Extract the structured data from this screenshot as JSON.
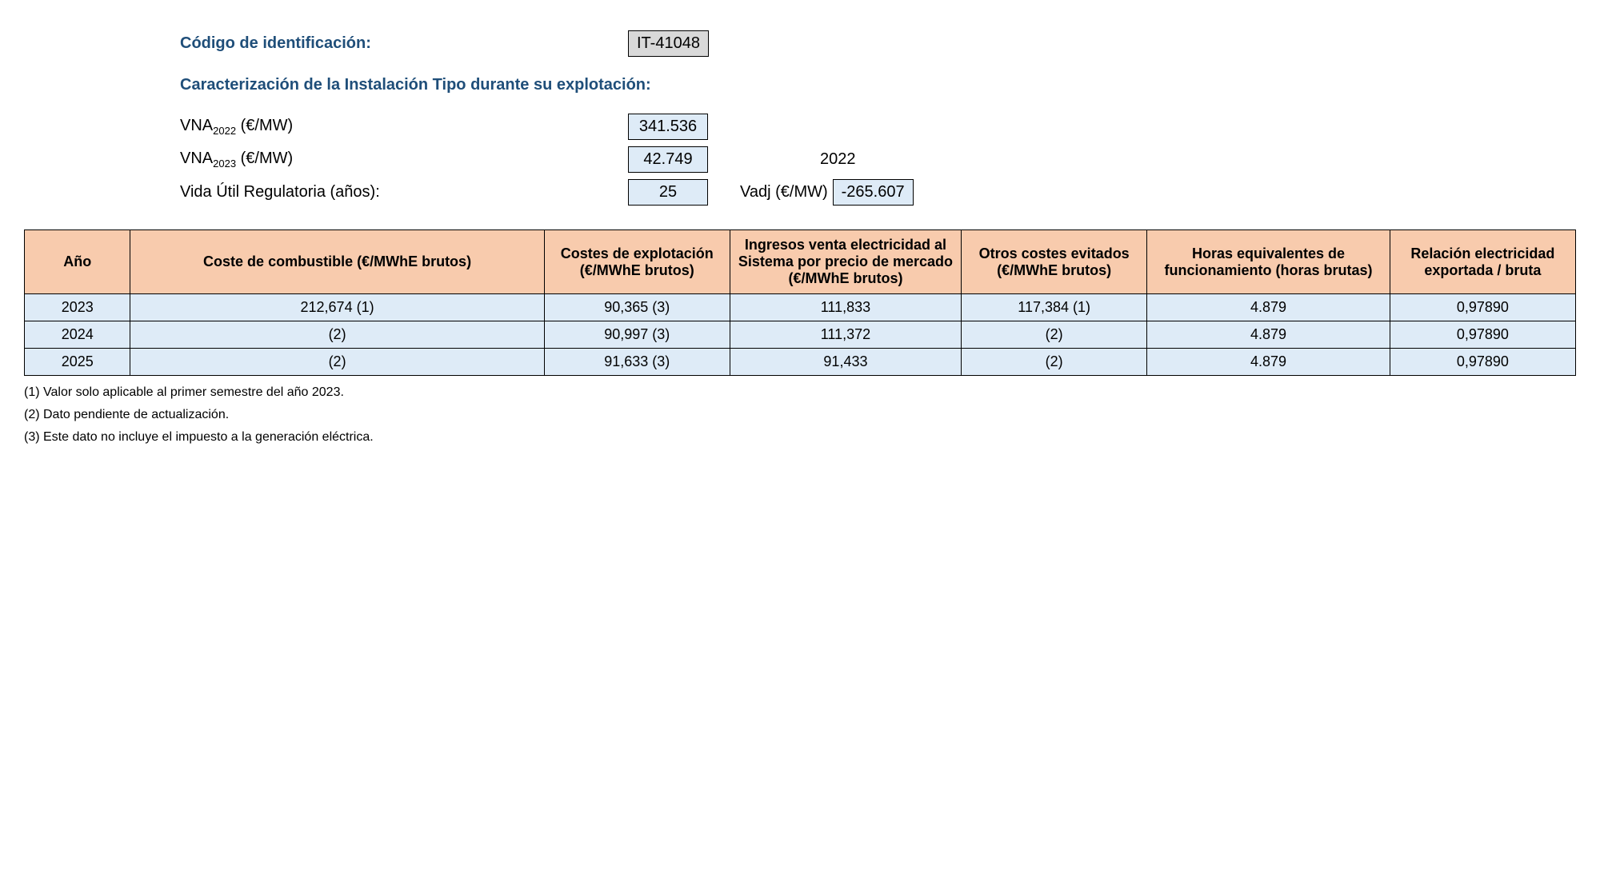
{
  "header": {
    "codigo_label": "Código de identificación:",
    "codigo_value": "IT-41048",
    "caracterizacion_label": "Caracterización de la Instalación Tipo durante su explotación:",
    "vna2022_label_prefix": "VNA",
    "vna2022_label_sub": "2022",
    "vna2022_label_suffix": " (€/MW)",
    "vna2022_value": "341.536",
    "vna2023_label_prefix": "VNA",
    "vna2023_label_sub": "2023",
    "vna2023_label_suffix": " (€/MW)",
    "vna2023_value": "42.749",
    "year_ref": "2022",
    "vida_label": "Vida Útil Regulatoria (años):",
    "vida_value": "25",
    "vadj_label": "Vadj (€/MW)",
    "vadj_value": "-265.607"
  },
  "table": {
    "columns": [
      "Año",
      "Coste de combustible (€/MWhE brutos)",
      "Costes de explotación (€/MWhE brutos)",
      "Ingresos venta electricidad al Sistema por precio de mercado (€/MWhE brutos)",
      "Otros costes evitados (€/MWhE brutos)",
      "Horas equivalentes de funcionamiento (horas brutas)",
      "Relación electricidad exportada / bruta"
    ],
    "rows": [
      [
        "2023",
        "212,674 (1)",
        "90,365 (3)",
        "111,833",
        "117,384 (1)",
        "4.879",
        "0,97890"
      ],
      [
        "2024",
        "(2)",
        "90,997 (3)",
        "111,372",
        "(2)",
        "4.879",
        "0,97890"
      ],
      [
        "2025",
        "(2)",
        "91,633 (3)",
        "91,433",
        "(2)",
        "4.879",
        "0,97890"
      ]
    ]
  },
  "footnotes": {
    "n1": "(1) Valor solo aplicable al primer semestre del año 2023.",
    "n2": "(2) Dato pendiente de actualización.",
    "n3": "(3) Este dato no incluye el impuesto a la generación eléctrica."
  },
  "style": {
    "heading_color": "#1f4e79",
    "th_bg": "#f8cbad",
    "td_bg": "#deebf7",
    "box_gray": "#d9d9d9",
    "border": "#000000",
    "font_size_body": 18,
    "font_size_heading": 20
  }
}
